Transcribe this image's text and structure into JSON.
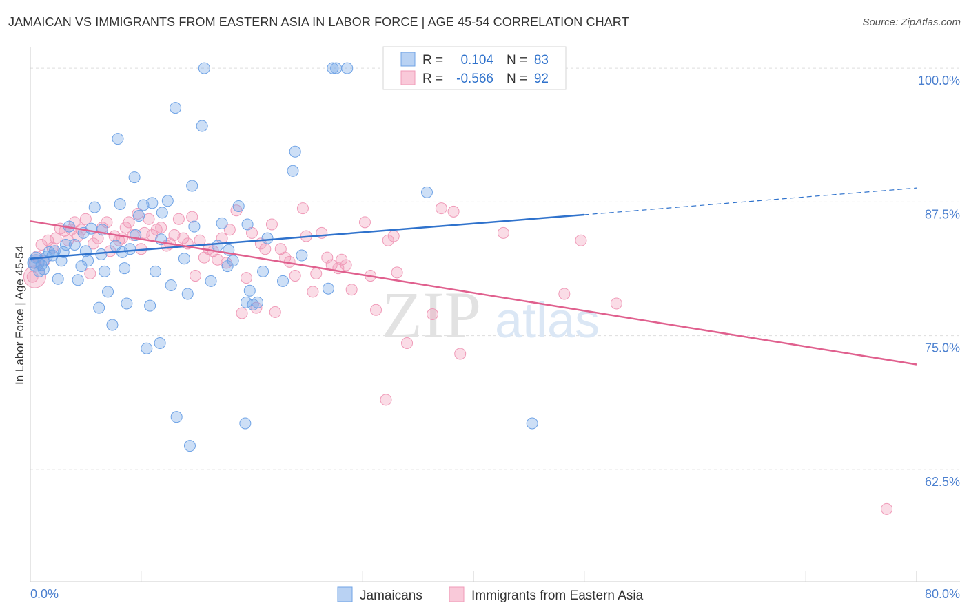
{
  "header": {
    "title": "JAMAICAN VS IMMIGRANTS FROM EASTERN ASIA IN LABOR FORCE | AGE 45-54 CORRELATION CHART",
    "source": "Source: ZipAtlas.com"
  },
  "watermark": {
    "zip": "ZIP",
    "atlas": "atlas"
  },
  "legend_box": {
    "rows": [
      {
        "r_label": "R =",
        "r_value": "0.104",
        "n_label": "N =",
        "n_value": "83",
        "color": "#6fa3e6"
      },
      {
        "r_label": "R =",
        "r_value": "-0.566",
        "n_label": "N =",
        "n_value": "92",
        "color": "#f09ab8"
      }
    ]
  },
  "chart_data": {
    "type": "scatter",
    "title": "JAMAICAN VS IMMIGRANTS FROM EASTERN ASIA IN LABOR FORCE | AGE 45-54 CORRELATION CHART",
    "ylabel": "In Labor Force | Age 45-54",
    "xlabel": "",
    "xlim": [
      0,
      80
    ],
    "ylim": [
      52,
      102
    ],
    "x_tick_labels": [
      "0.0%",
      "80.0%"
    ],
    "y_ticks": [
      62.5,
      75.0,
      87.5,
      100.0
    ],
    "y_tick_labels": [
      "62.5%",
      "75.0%",
      "87.5%",
      "100.0%"
    ],
    "grid": true,
    "legend_position": "bottom-center",
    "colors": {
      "jamaicans": "#6fa3e6",
      "immigrants": "#f09ab8",
      "jamaicans_line": "#2f72cc",
      "immigrants_line": "#e0608e",
      "tick_text": "#4a7fcf"
    },
    "series": [
      {
        "name": "Jamaicans",
        "R": 0.104,
        "N": 83,
        "trend": {
          "x0": 0,
          "y0": 82.2,
          "x1": 50,
          "y1": 86.3,
          "dash_to_x": 80,
          "dash_to_y": 88.8
        },
        "points": [
          [
            0.3,
            81.8
          ],
          [
            0.5,
            82.3
          ],
          [
            0.8,
            81.0
          ],
          [
            1.0,
            81.6
          ],
          [
            1.2,
            82.0
          ],
          [
            1.5,
            82.4
          ],
          [
            1.7,
            82.8
          ],
          [
            2.0,
            82.5
          ],
          [
            2.5,
            80.3
          ],
          [
            2.8,
            82.0
          ],
          [
            3.0,
            82.8
          ],
          [
            3.5,
            85.2
          ],
          [
            4.0,
            83.5
          ],
          [
            4.3,
            80.2
          ],
          [
            4.6,
            81.5
          ],
          [
            5.0,
            82.9
          ],
          [
            5.2,
            82.0
          ],
          [
            5.5,
            85.0
          ],
          [
            5.8,
            87.0
          ],
          [
            6.2,
            77.6
          ],
          [
            6.4,
            82.6
          ],
          [
            6.7,
            81.0
          ],
          [
            7.0,
            79.1
          ],
          [
            7.4,
            76.0
          ],
          [
            7.7,
            83.4
          ],
          [
            7.9,
            93.4
          ],
          [
            8.1,
            87.3
          ],
          [
            8.3,
            82.8
          ],
          [
            8.5,
            81.3
          ],
          [
            8.7,
            78.0
          ],
          [
            9.0,
            83.1
          ],
          [
            9.4,
            89.8
          ],
          [
            9.8,
            86.2
          ],
          [
            10.2,
            87.2
          ],
          [
            10.5,
            73.8
          ],
          [
            10.8,
            77.8
          ],
          [
            11.0,
            87.4
          ],
          [
            11.3,
            81.0
          ],
          [
            11.7,
            74.3
          ],
          [
            11.9,
            86.5
          ],
          [
            12.4,
            87.6
          ],
          [
            12.7,
            79.7
          ],
          [
            13.1,
            96.3
          ],
          [
            13.2,
            67.4
          ],
          [
            13.9,
            82.2
          ],
          [
            14.2,
            78.9
          ],
          [
            14.4,
            64.7
          ],
          [
            14.6,
            89.0
          ],
          [
            15.5,
            94.6
          ],
          [
            15.7,
            100.0
          ],
          [
            16.3,
            80.1
          ],
          [
            17.3,
            85.5
          ],
          [
            17.8,
            81.5
          ],
          [
            17.9,
            83.0
          ],
          [
            18.8,
            87.1
          ],
          [
            19.4,
            66.8
          ],
          [
            19.5,
            78.1
          ],
          [
            19.6,
            85.4
          ],
          [
            19.8,
            79.2
          ],
          [
            20.1,
            77.9
          ],
          [
            20.5,
            78.1
          ],
          [
            21.4,
            84.1
          ],
          [
            22.8,
            80.1
          ],
          [
            23.7,
            90.4
          ],
          [
            23.9,
            92.2
          ],
          [
            26.9,
            79.4
          ],
          [
            27.3,
            100.0
          ],
          [
            27.6,
            100.0
          ],
          [
            28.6,
            100.0
          ],
          [
            35.8,
            88.4
          ],
          [
            45.3,
            66.8
          ],
          [
            1.2,
            81.2
          ],
          [
            2.2,
            82.9
          ],
          [
            3.2,
            83.5
          ],
          [
            4.8,
            84.6
          ],
          [
            6.5,
            84.9
          ],
          [
            9.5,
            84.4
          ],
          [
            11.8,
            84.0
          ],
          [
            14.8,
            85.2
          ],
          [
            16.9,
            83.4
          ],
          [
            18.3,
            82.0
          ],
          [
            21.0,
            81.0
          ],
          [
            24.5,
            82.5
          ]
        ]
      },
      {
        "name": "Immigrants from Eastern Asia",
        "R": -0.566,
        "N": 92,
        "trend": {
          "x0": 0,
          "y0": 85.7,
          "x1": 80,
          "y1": 72.3
        },
        "points": [
          [
            0.2,
            80.5
          ],
          [
            0.4,
            81.8
          ],
          [
            0.6,
            82.4
          ],
          [
            1.0,
            83.5
          ],
          [
            1.3,
            82.0
          ],
          [
            1.6,
            83.9
          ],
          [
            2.0,
            83.2
          ],
          [
            2.3,
            84.1
          ],
          [
            2.7,
            85.0
          ],
          [
            3.1,
            84.8
          ],
          [
            3.4,
            83.9
          ],
          [
            3.7,
            84.9
          ],
          [
            4.0,
            85.6
          ],
          [
            4.3,
            84.3
          ],
          [
            4.6,
            84.9
          ],
          [
            5.0,
            85.9
          ],
          [
            5.4,
            80.8
          ],
          [
            5.7,
            83.6
          ],
          [
            6.1,
            84.1
          ],
          [
            6.5,
            85.1
          ],
          [
            6.9,
            85.6
          ],
          [
            7.2,
            82.9
          ],
          [
            7.6,
            84.3
          ],
          [
            8.0,
            83.9
          ],
          [
            8.3,
            84.1
          ],
          [
            8.6,
            85.1
          ],
          [
            8.9,
            85.6
          ],
          [
            9.3,
            84.4
          ],
          [
            9.7,
            86.4
          ],
          [
            10.0,
            83.1
          ],
          [
            10.3,
            84.6
          ],
          [
            10.7,
            85.9
          ],
          [
            11.0,
            84.4
          ],
          [
            11.4,
            84.9
          ],
          [
            11.8,
            85.1
          ],
          [
            12.3,
            83.4
          ],
          [
            12.6,
            83.6
          ],
          [
            13.0,
            84.4
          ],
          [
            13.4,
            85.9
          ],
          [
            13.8,
            84.1
          ],
          [
            14.2,
            83.6
          ],
          [
            14.6,
            86.1
          ],
          [
            14.9,
            80.6
          ],
          [
            15.3,
            83.9
          ],
          [
            15.7,
            82.3
          ],
          [
            16.1,
            83.1
          ],
          [
            16.5,
            82.9
          ],
          [
            16.9,
            82.1
          ],
          [
            17.3,
            84.1
          ],
          [
            17.7,
            81.8
          ],
          [
            18.0,
            84.9
          ],
          [
            18.6,
            86.7
          ],
          [
            19.1,
            77.1
          ],
          [
            19.5,
            80.4
          ],
          [
            20.0,
            84.6
          ],
          [
            20.4,
            77.6
          ],
          [
            20.8,
            83.6
          ],
          [
            21.2,
            83.1
          ],
          [
            21.8,
            85.4
          ],
          [
            22.1,
            77.2
          ],
          [
            22.6,
            83.1
          ],
          [
            23.0,
            82.3
          ],
          [
            23.4,
            81.9
          ],
          [
            23.9,
            80.6
          ],
          [
            24.6,
            86.9
          ],
          [
            24.9,
            84.3
          ],
          [
            25.5,
            79.1
          ],
          [
            25.8,
            80.8
          ],
          [
            26.3,
            84.6
          ],
          [
            26.8,
            82.3
          ],
          [
            27.2,
            81.6
          ],
          [
            27.8,
            81.3
          ],
          [
            28.1,
            82.1
          ],
          [
            28.5,
            81.6
          ],
          [
            29.0,
            79.3
          ],
          [
            30.2,
            85.6
          ],
          [
            30.7,
            80.6
          ],
          [
            31.2,
            77.4
          ],
          [
            32.1,
            69.0
          ],
          [
            32.3,
            83.9
          ],
          [
            32.8,
            84.3
          ],
          [
            33.1,
            80.9
          ],
          [
            34.0,
            74.3
          ],
          [
            36.3,
            77.0
          ],
          [
            37.1,
            86.9
          ],
          [
            38.2,
            86.6
          ],
          [
            38.8,
            73.3
          ],
          [
            42.7,
            84.6
          ],
          [
            48.2,
            78.9
          ],
          [
            49.7,
            83.9
          ],
          [
            52.9,
            78.0
          ],
          [
            77.3,
            58.8
          ]
        ]
      }
    ]
  },
  "axes": {
    "x_left_label": "0.0%",
    "x_right_label": "80.0%",
    "y_axis_label": "In Labor Force | Age 45-54"
  },
  "bottom_legend": {
    "items": [
      {
        "label": "Jamaicans",
        "color": "#6fa3e6"
      },
      {
        "label": "Immigrants from Eastern Asia",
        "color": "#f09ab8"
      }
    ]
  }
}
